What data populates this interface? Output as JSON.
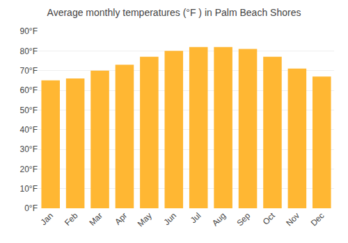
{
  "chart_data": {
    "type": "bar",
    "title": "Average monthly temperatures (°F ) in Palm Beach Shores",
    "categories": [
      "Jan",
      "Feb",
      "Mar",
      "Apr",
      "May",
      "Jun",
      "Jul",
      "Aug",
      "Sep",
      "Oct",
      "Nov",
      "Dec"
    ],
    "values": [
      65,
      66,
      70,
      73,
      77,
      80,
      82,
      82,
      81,
      77,
      71,
      67
    ],
    "color": "#FFB733",
    "ylim": [
      0,
      90
    ],
    "yticks": [
      {
        "value": 0,
        "label": "0°F"
      },
      {
        "value": 10,
        "label": "10°F"
      },
      {
        "value": 20,
        "label": "20°F"
      },
      {
        "value": 30,
        "label": "30°F"
      },
      {
        "value": 40,
        "label": "40°F"
      },
      {
        "value": 50,
        "label": "50°F"
      },
      {
        "value": 60,
        "label": "60°F"
      },
      {
        "value": 70,
        "label": "70°F"
      },
      {
        "value": 80,
        "label": "80°F"
      },
      {
        "value": 90,
        "label": "90°F"
      }
    ],
    "grid": true
  }
}
